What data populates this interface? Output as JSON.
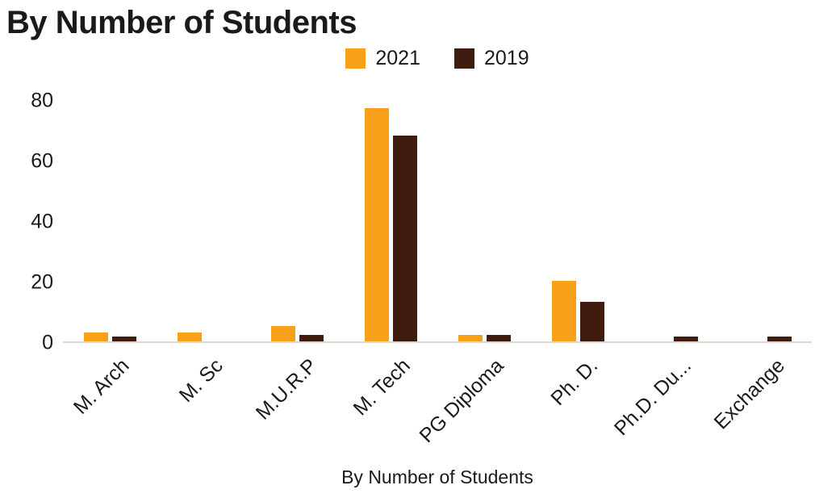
{
  "title": "By Number of Students",
  "legend": [
    {
      "label": "2021",
      "color": "#F9A01B"
    },
    {
      "label": "2019",
      "color": "#401C0E"
    }
  ],
  "axis": {
    "x_title": "By Number of Students",
    "y_ticks": [
      0,
      20,
      40,
      60,
      80
    ],
    "y_max": 80
  },
  "chart_data": {
    "type": "bar",
    "title": "By Number of Students",
    "categories": [
      "M. Arch",
      "M. Sc",
      "M.U.R.P",
      "M. Tech",
      "PG Diploma",
      "Ph. D.",
      "Ph.D. Du...",
      "Exchange"
    ],
    "series": [
      {
        "name": "2021",
        "color": "#F9A01B",
        "values": [
          3,
          3,
          5,
          77,
          2,
          20,
          0,
          0
        ]
      },
      {
        "name": "2019",
        "color": "#401C0E",
        "values": [
          1.5,
          0,
          2,
          68,
          2,
          13,
          1.5,
          1.5
        ]
      }
    ],
    "xlabel": "By Number of Students",
    "ylabel": "",
    "ylim": [
      0,
      80
    ],
    "legend_position": "top",
    "grid": false
  }
}
